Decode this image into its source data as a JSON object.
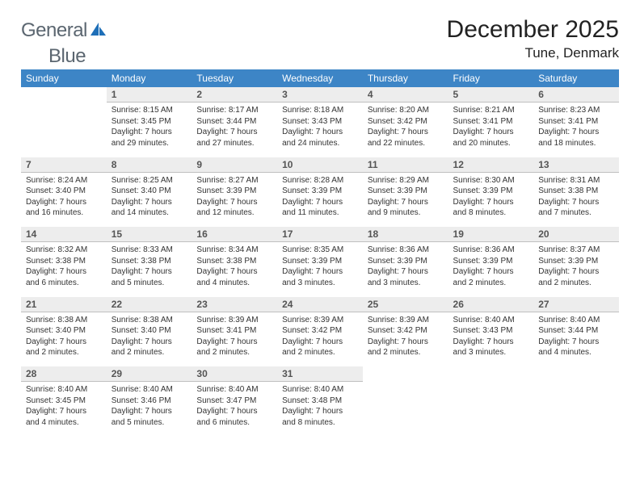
{
  "logo": {
    "word1": "General",
    "word2": "Blue"
  },
  "title": "December 2025",
  "location": "Tune, Denmark",
  "colors": {
    "header_bg": "#3d85c6",
    "header_text": "#ffffff",
    "daynum_bg": "#ededed",
    "daynum_border": "#bfbfbf",
    "logo_gray": "#5b6670",
    "logo_blue": "#1e6fb8"
  },
  "weekdays": [
    "Sunday",
    "Monday",
    "Tuesday",
    "Wednesday",
    "Thursday",
    "Friday",
    "Saturday"
  ],
  "weeks": [
    {
      "days": [
        {
          "num": "",
          "sunrise": "",
          "sunset": "",
          "daylight": ""
        },
        {
          "num": "1",
          "sunrise": "Sunrise: 8:15 AM",
          "sunset": "Sunset: 3:45 PM",
          "daylight": "Daylight: 7 hours and 29 minutes."
        },
        {
          "num": "2",
          "sunrise": "Sunrise: 8:17 AM",
          "sunset": "Sunset: 3:44 PM",
          "daylight": "Daylight: 7 hours and 27 minutes."
        },
        {
          "num": "3",
          "sunrise": "Sunrise: 8:18 AM",
          "sunset": "Sunset: 3:43 PM",
          "daylight": "Daylight: 7 hours and 24 minutes."
        },
        {
          "num": "4",
          "sunrise": "Sunrise: 8:20 AM",
          "sunset": "Sunset: 3:42 PM",
          "daylight": "Daylight: 7 hours and 22 minutes."
        },
        {
          "num": "5",
          "sunrise": "Sunrise: 8:21 AM",
          "sunset": "Sunset: 3:41 PM",
          "daylight": "Daylight: 7 hours and 20 minutes."
        },
        {
          "num": "6",
          "sunrise": "Sunrise: 8:23 AM",
          "sunset": "Sunset: 3:41 PM",
          "daylight": "Daylight: 7 hours and 18 minutes."
        }
      ]
    },
    {
      "days": [
        {
          "num": "7",
          "sunrise": "Sunrise: 8:24 AM",
          "sunset": "Sunset: 3:40 PM",
          "daylight": "Daylight: 7 hours and 16 minutes."
        },
        {
          "num": "8",
          "sunrise": "Sunrise: 8:25 AM",
          "sunset": "Sunset: 3:40 PM",
          "daylight": "Daylight: 7 hours and 14 minutes."
        },
        {
          "num": "9",
          "sunrise": "Sunrise: 8:27 AM",
          "sunset": "Sunset: 3:39 PM",
          "daylight": "Daylight: 7 hours and 12 minutes."
        },
        {
          "num": "10",
          "sunrise": "Sunrise: 8:28 AM",
          "sunset": "Sunset: 3:39 PM",
          "daylight": "Daylight: 7 hours and 11 minutes."
        },
        {
          "num": "11",
          "sunrise": "Sunrise: 8:29 AM",
          "sunset": "Sunset: 3:39 PM",
          "daylight": "Daylight: 7 hours and 9 minutes."
        },
        {
          "num": "12",
          "sunrise": "Sunrise: 8:30 AM",
          "sunset": "Sunset: 3:39 PM",
          "daylight": "Daylight: 7 hours and 8 minutes."
        },
        {
          "num": "13",
          "sunrise": "Sunrise: 8:31 AM",
          "sunset": "Sunset: 3:38 PM",
          "daylight": "Daylight: 7 hours and 7 minutes."
        }
      ]
    },
    {
      "days": [
        {
          "num": "14",
          "sunrise": "Sunrise: 8:32 AM",
          "sunset": "Sunset: 3:38 PM",
          "daylight": "Daylight: 7 hours and 6 minutes."
        },
        {
          "num": "15",
          "sunrise": "Sunrise: 8:33 AM",
          "sunset": "Sunset: 3:38 PM",
          "daylight": "Daylight: 7 hours and 5 minutes."
        },
        {
          "num": "16",
          "sunrise": "Sunrise: 8:34 AM",
          "sunset": "Sunset: 3:38 PM",
          "daylight": "Daylight: 7 hours and 4 minutes."
        },
        {
          "num": "17",
          "sunrise": "Sunrise: 8:35 AM",
          "sunset": "Sunset: 3:39 PM",
          "daylight": "Daylight: 7 hours and 3 minutes."
        },
        {
          "num": "18",
          "sunrise": "Sunrise: 8:36 AM",
          "sunset": "Sunset: 3:39 PM",
          "daylight": "Daylight: 7 hours and 3 minutes."
        },
        {
          "num": "19",
          "sunrise": "Sunrise: 8:36 AM",
          "sunset": "Sunset: 3:39 PM",
          "daylight": "Daylight: 7 hours and 2 minutes."
        },
        {
          "num": "20",
          "sunrise": "Sunrise: 8:37 AM",
          "sunset": "Sunset: 3:39 PM",
          "daylight": "Daylight: 7 hours and 2 minutes."
        }
      ]
    },
    {
      "days": [
        {
          "num": "21",
          "sunrise": "Sunrise: 8:38 AM",
          "sunset": "Sunset: 3:40 PM",
          "daylight": "Daylight: 7 hours and 2 minutes."
        },
        {
          "num": "22",
          "sunrise": "Sunrise: 8:38 AM",
          "sunset": "Sunset: 3:40 PM",
          "daylight": "Daylight: 7 hours and 2 minutes."
        },
        {
          "num": "23",
          "sunrise": "Sunrise: 8:39 AM",
          "sunset": "Sunset: 3:41 PM",
          "daylight": "Daylight: 7 hours and 2 minutes."
        },
        {
          "num": "24",
          "sunrise": "Sunrise: 8:39 AM",
          "sunset": "Sunset: 3:42 PM",
          "daylight": "Daylight: 7 hours and 2 minutes."
        },
        {
          "num": "25",
          "sunrise": "Sunrise: 8:39 AM",
          "sunset": "Sunset: 3:42 PM",
          "daylight": "Daylight: 7 hours and 2 minutes."
        },
        {
          "num": "26",
          "sunrise": "Sunrise: 8:40 AM",
          "sunset": "Sunset: 3:43 PM",
          "daylight": "Daylight: 7 hours and 3 minutes."
        },
        {
          "num": "27",
          "sunrise": "Sunrise: 8:40 AM",
          "sunset": "Sunset: 3:44 PM",
          "daylight": "Daylight: 7 hours and 4 minutes."
        }
      ]
    },
    {
      "days": [
        {
          "num": "28",
          "sunrise": "Sunrise: 8:40 AM",
          "sunset": "Sunset: 3:45 PM",
          "daylight": "Daylight: 7 hours and 4 minutes."
        },
        {
          "num": "29",
          "sunrise": "Sunrise: 8:40 AM",
          "sunset": "Sunset: 3:46 PM",
          "daylight": "Daylight: 7 hours and 5 minutes."
        },
        {
          "num": "30",
          "sunrise": "Sunrise: 8:40 AM",
          "sunset": "Sunset: 3:47 PM",
          "daylight": "Daylight: 7 hours and 6 minutes."
        },
        {
          "num": "31",
          "sunrise": "Sunrise: 8:40 AM",
          "sunset": "Sunset: 3:48 PM",
          "daylight": "Daylight: 7 hours and 8 minutes."
        },
        {
          "num": "",
          "sunrise": "",
          "sunset": "",
          "daylight": ""
        },
        {
          "num": "",
          "sunrise": "",
          "sunset": "",
          "daylight": ""
        },
        {
          "num": "",
          "sunrise": "",
          "sunset": "",
          "daylight": ""
        }
      ]
    }
  ]
}
